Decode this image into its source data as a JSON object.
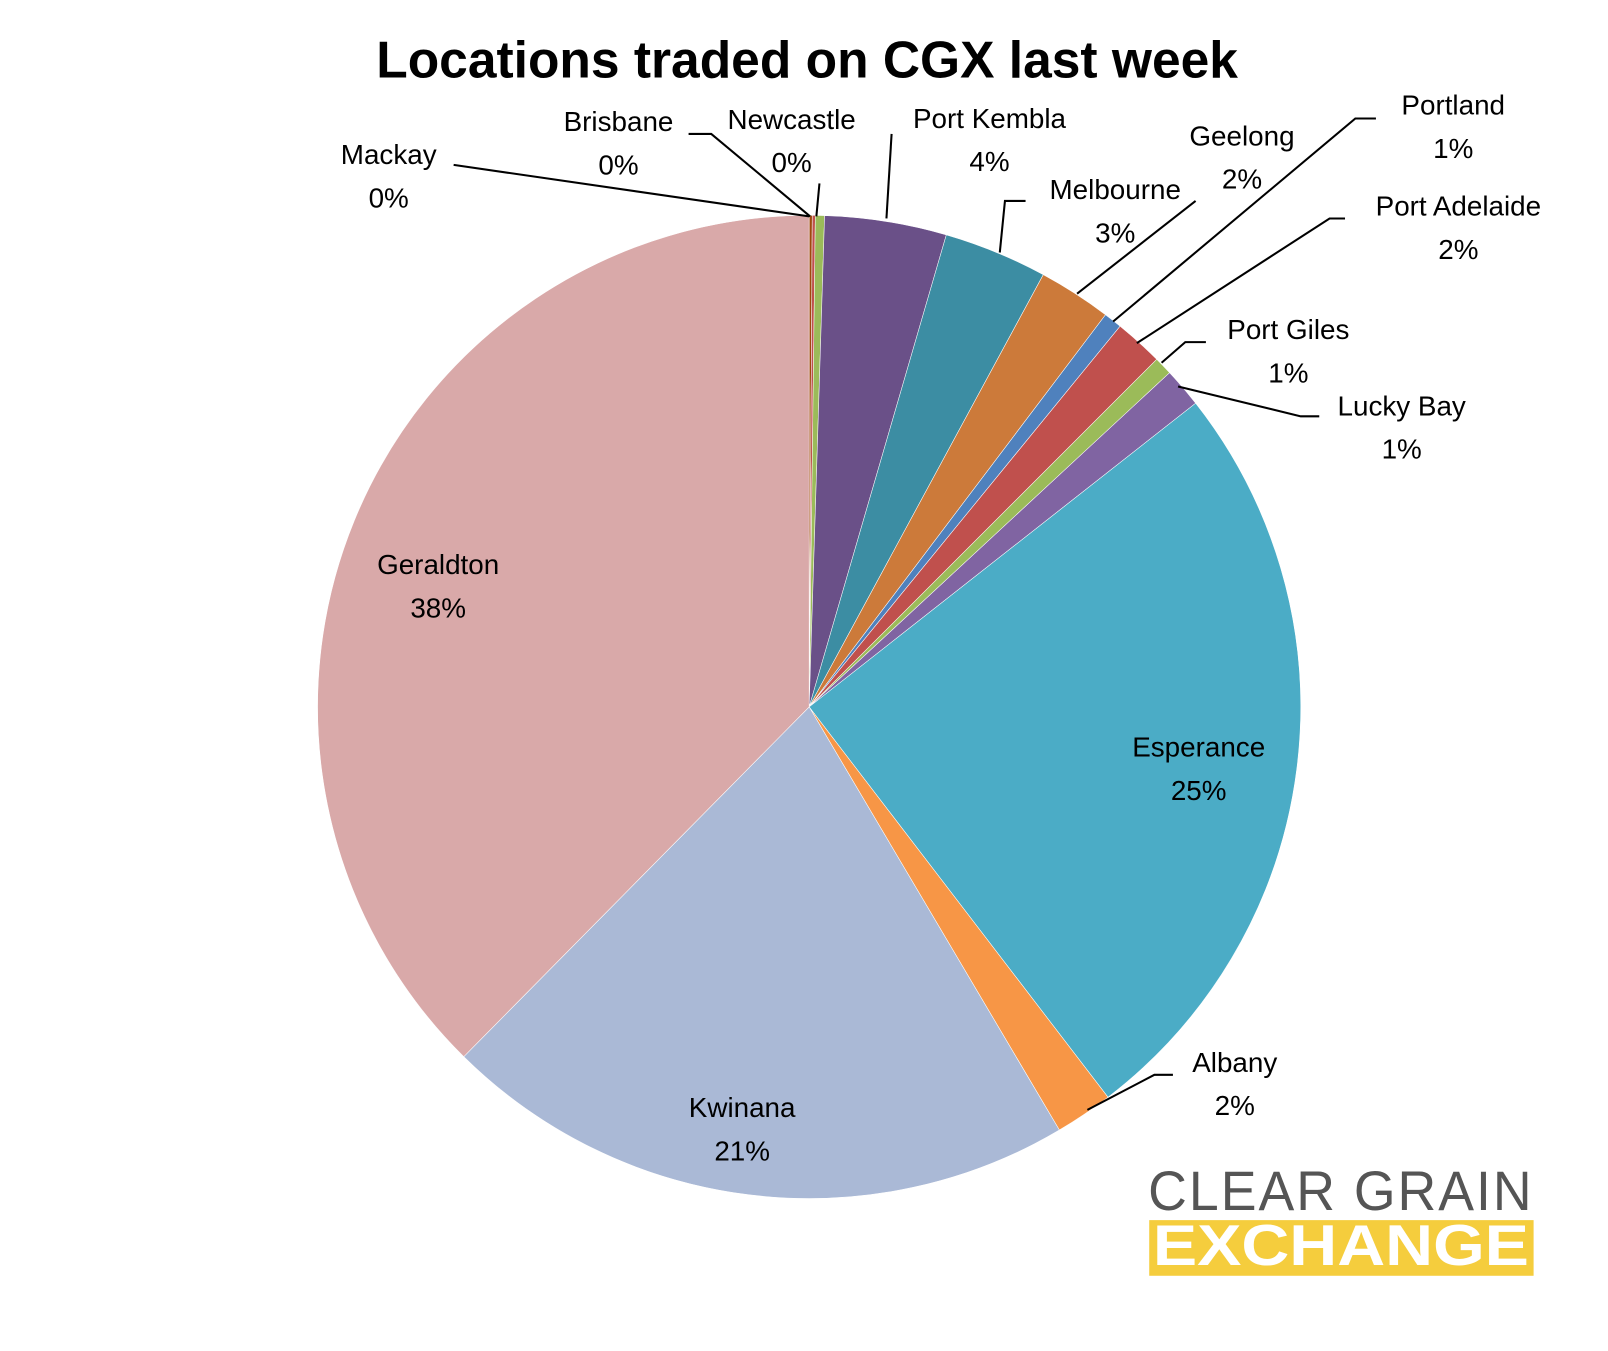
{
  "chart_data": {
    "type": "pie",
    "title": "Locations traded on CGX last week",
    "categories": [
      "Mackay",
      "Brisbane",
      "Newcastle",
      "Port Kembla",
      "Melbourne",
      "Geelong",
      "Portland",
      "Port Adelaide",
      "Port Giles",
      "Lucky Bay",
      "Esperance",
      "Albany",
      "Kwinana",
      "Geraldton"
    ],
    "values": [
      0.1,
      0.1,
      0.3,
      4.0,
      3.4,
      2.4,
      0.6,
      1.6,
      0.6,
      1.3,
      25.2,
      1.9,
      20.9,
      37.6
    ],
    "value_labels": [
      "0%",
      "0%",
      "0%",
      "4%",
      "3%",
      "2%",
      "1%",
      "2%",
      "1%",
      "1%",
      "25%",
      "2%",
      "21%",
      "38%"
    ],
    "colors": [
      "#9e480e",
      "#c0504d",
      "#9bbb59",
      "#6a5088",
      "#3c8da3",
      "#cc7a3a",
      "#4f81bd",
      "#c0504d",
      "#9bbb59",
      "#8064a2",
      "#4bacc6",
      "#f79646",
      "#aab9d6",
      "#d9a9a9"
    ]
  },
  "logo": {
    "line1": "CLEAR GRAIN",
    "line2": "EXCHANGE"
  }
}
